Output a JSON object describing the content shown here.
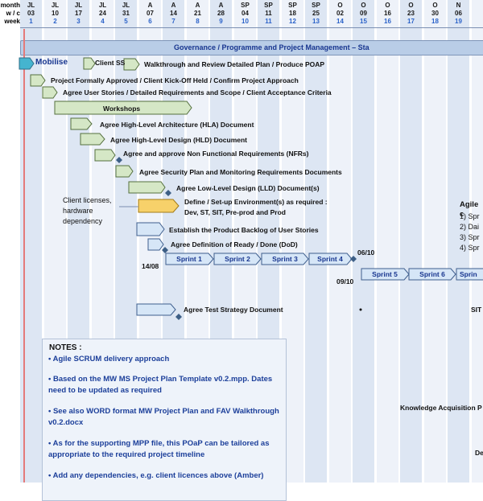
{
  "header": {
    "row_labels": [
      "month",
      "w / c",
      "week"
    ],
    "columns": [
      {
        "month": "JL",
        "date": "03",
        "week": "1"
      },
      {
        "month": "JL",
        "date": "10",
        "week": "2"
      },
      {
        "month": "JL",
        "date": "17",
        "week": "3"
      },
      {
        "month": "JL",
        "date": "24",
        "week": "4"
      },
      {
        "month": "JL",
        "date": "31",
        "week": "5"
      },
      {
        "month": "A",
        "date": "07",
        "week": "6"
      },
      {
        "month": "A",
        "date": "14",
        "week": "7"
      },
      {
        "month": "A",
        "date": "21",
        "week": "8"
      },
      {
        "month": "A",
        "date": "28",
        "week": "9"
      },
      {
        "month": "SP",
        "date": "04",
        "week": "10"
      },
      {
        "month": "SP",
        "date": "11",
        "week": "11"
      },
      {
        "month": "SP",
        "date": "18",
        "week": "12"
      },
      {
        "month": "SP",
        "date": "25",
        "week": "13"
      },
      {
        "month": "O",
        "date": "02",
        "week": "14"
      },
      {
        "month": "O",
        "date": "09",
        "week": "15"
      },
      {
        "month": "O",
        "date": "16",
        "week": "16"
      },
      {
        "month": "O",
        "date": "23",
        "week": "17"
      },
      {
        "month": "O",
        "date": "30",
        "week": "18"
      },
      {
        "month": "N",
        "date": "06",
        "week": "19"
      },
      {
        "month": "",
        "date": "",
        "week": ""
      }
    ]
  },
  "governance": "Governance / Programme and Project Management – Sta",
  "tasks": {
    "mobilise": "Mobilise",
    "client_ss": "Client SS",
    "walkthrough": "Walkthrough and Review Detailed Plan / Produce POAP",
    "approved": "Project Formally Approved / Client Kick-Off Held / Confirm Project Approach",
    "user_stories": "Agree User Stories / Detailed Requirements and Scope / Client Acceptance Criteria",
    "workshops": "Workshops",
    "hla": "Agree High-Level Architecture (HLA) Document",
    "hld": "Agree High-Level Design (HLD) Document",
    "nfr": "Agree and approve Non Functional Requirements (NFRs)",
    "security": "Agree Security Plan and Monitoring Requirements Documents",
    "lld": "Agree Low-Level Design (LLD) Document(s)",
    "env_line1": "Define / Set-up Environment(s) as required :",
    "env_line2": "Dev, ST, SIT, Pre-prod and Prod",
    "backlog": "Establish the Product Backlog of User Stories",
    "dod": "Agree Definition of Ready / Done (DoD)",
    "test_strategy": "Agree Test Strategy Document"
  },
  "client_note": [
    "Client licenses,",
    "hardware",
    "dependency"
  ],
  "sprints": [
    "Sprint 1",
    "Sprint 2",
    "Sprint 3",
    "Sprint 4",
    "Sprint 5",
    "Sprint 6",
    "Sprin"
  ],
  "dates": {
    "d1408": "14/08",
    "d0610": "06/10",
    "d0910": "09/10"
  },
  "right_panel": {
    "title": "Agile c",
    "items": [
      "1) Spr",
      "2) Dai",
      "3) Spr",
      "4) Spr"
    ],
    "sit": "SIT",
    "knowledge": "Knowledge Acquisition P",
    "de": "De"
  },
  "notes": {
    "title": "NOTES :",
    "items": [
      "• Agile SCRUM delivery approach",
      "• Based on the MW MS Project Plan Template v0.2.mpp. Dates need to be updated as required",
      "• See also WORD format MW Project Plan and FAV Walkthrough v0.2.docx",
      "• As for the supporting MPP file, this POaP can be tailored as appropriate to the required project timeline",
      "• Add any dependencies, e.g. client licences above (Amber)"
    ]
  },
  "colors": {
    "bar_green": "#d5e7c6",
    "bar_blue": "#d6e6f7",
    "bar_teal": "#45b4cf",
    "bar_amber": "#f7d16a",
    "governance": "#b9cde7",
    "milestone": "#3d5f86",
    "today_line": "#e47a7a"
  }
}
